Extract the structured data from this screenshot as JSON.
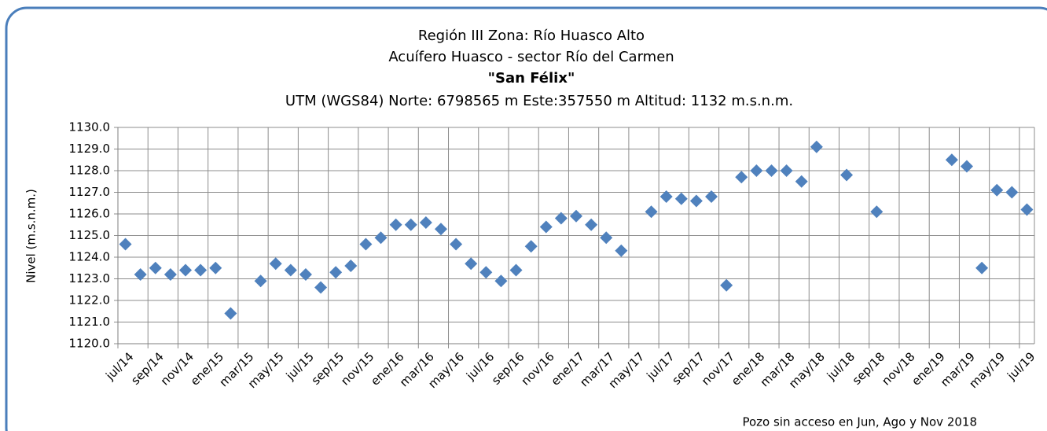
{
  "chart_data": {
    "type": "scatter",
    "title": "Región III  Zona: Río Huasco Alto",
    "subtitle": "Acuífero Huasco - sector Río del Carmen",
    "well_name": "\"San Félix\"",
    "location": "UTM (WGS84) Norte: 6798565 m   Este:357550 m   Altitud: 1132 m.s.n.m.",
    "y_label": "Nivel (m.s.n.m.)",
    "annotation": "Pozo sin acceso en Jun, Ago y Nov 2018",
    "categories": [
      "jul/14",
      null,
      "sep/14",
      null,
      "nov/14",
      null,
      "ene/15",
      null,
      "mar/15",
      null,
      "may/15",
      null,
      "jul/15",
      null,
      "sep/15",
      null,
      "nov/15",
      null,
      "ene/16",
      null,
      "mar/16",
      null,
      "may/16",
      null,
      "jul/16",
      null,
      "sep/16",
      null,
      "nov/16",
      null,
      "ene/17",
      null,
      "mar/17",
      null,
      "may/17",
      null,
      "jul/17",
      null,
      "sep/17",
      null,
      "nov/17",
      null,
      "ene/18",
      null,
      "mar/18",
      null,
      "may/18",
      null,
      "jul/18",
      null,
      "sep/18",
      null,
      "nov/18",
      null,
      "ene/19",
      null,
      "mar/19",
      null,
      "may/19",
      null,
      "jul/19"
    ],
    "values": [
      1124.6,
      1123.2,
      1123.5,
      1123.2,
      1123.4,
      1123.4,
      1123.5,
      1121.4,
      null,
      1122.9,
      1123.7,
      1123.4,
      1123.2,
      1122.6,
      1123.3,
      1123.6,
      1124.6,
      1124.9,
      1125.5,
      1125.5,
      1125.6,
      1125.3,
      1124.6,
      1123.7,
      1123.3,
      1122.9,
      1123.4,
      1124.5,
      1125.4,
      1125.8,
      1125.9,
      1125.5,
      1124.9,
      1124.3,
      null,
      1126.1,
      1126.8,
      1126.7,
      1126.6,
      1126.8,
      1122.7,
      1127.7,
      1128.0,
      1128.0,
      1128.0,
      1127.5,
      1129.1,
      null,
      1127.8,
      null,
      1126.1,
      null,
      null,
      null,
      null,
      1128.5,
      1128.2,
      1123.5,
      1127.1,
      1127.0,
      1126.2
    ],
    "color": "#4f81bd",
    "ylim": [
      1120,
      1130
    ],
    "yticks": [
      {
        "value": 1120,
        "label": "1120.0"
      },
      {
        "value": 1121,
        "label": "1121.0"
      },
      {
        "value": 1122,
        "label": "1122.0"
      },
      {
        "value": 1123,
        "label": "1123.0"
      },
      {
        "value": 1124,
        "label": "1124.0"
      },
      {
        "value": 1125,
        "label": "1125.0"
      },
      {
        "value": 1126,
        "label": "1126.0"
      },
      {
        "value": 1127,
        "label": "1127.0"
      },
      {
        "value": 1128,
        "label": "1128.0"
      },
      {
        "value": 1129,
        "label": "1129.0"
      },
      {
        "value": 1130,
        "label": "1130.0"
      }
    ],
    "grid": true
  }
}
